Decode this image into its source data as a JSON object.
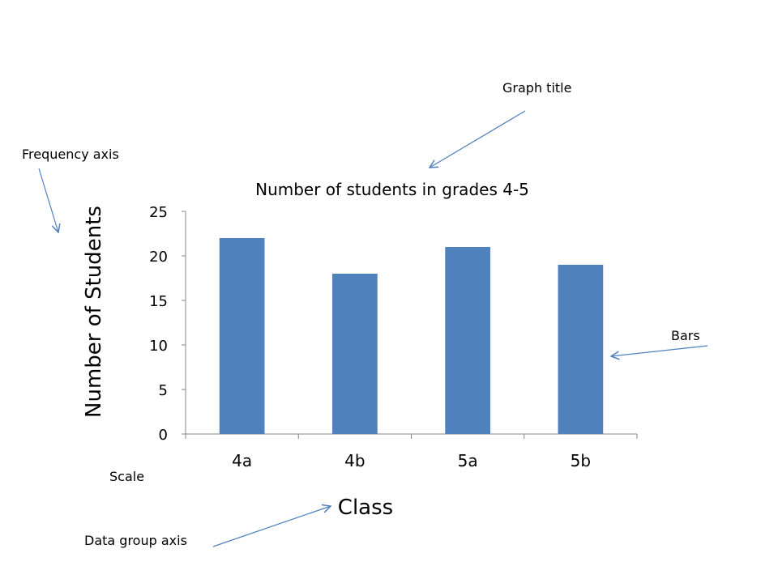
{
  "annotations": {
    "graph_title": "Graph title",
    "frequency_axis": "Frequency axis",
    "bars": "Bars",
    "scale": "Scale",
    "data_group_axis": "Data group axis"
  },
  "colors": {
    "bar": "#4F81BD",
    "arrow": "#4F81BD",
    "axis": "#868686"
  },
  "chart_data": {
    "type": "bar",
    "title": "Number of students in grades 4-5",
    "xlabel": "Class",
    "ylabel": "Number of Students",
    "categories": [
      "4a",
      "4b",
      "5a",
      "5b"
    ],
    "values": [
      22,
      18,
      21,
      19
    ],
    "ylim": [
      0,
      25
    ],
    "yticks": [
      0,
      5,
      10,
      15,
      20,
      25
    ],
    "grid": false,
    "legend": "none"
  }
}
